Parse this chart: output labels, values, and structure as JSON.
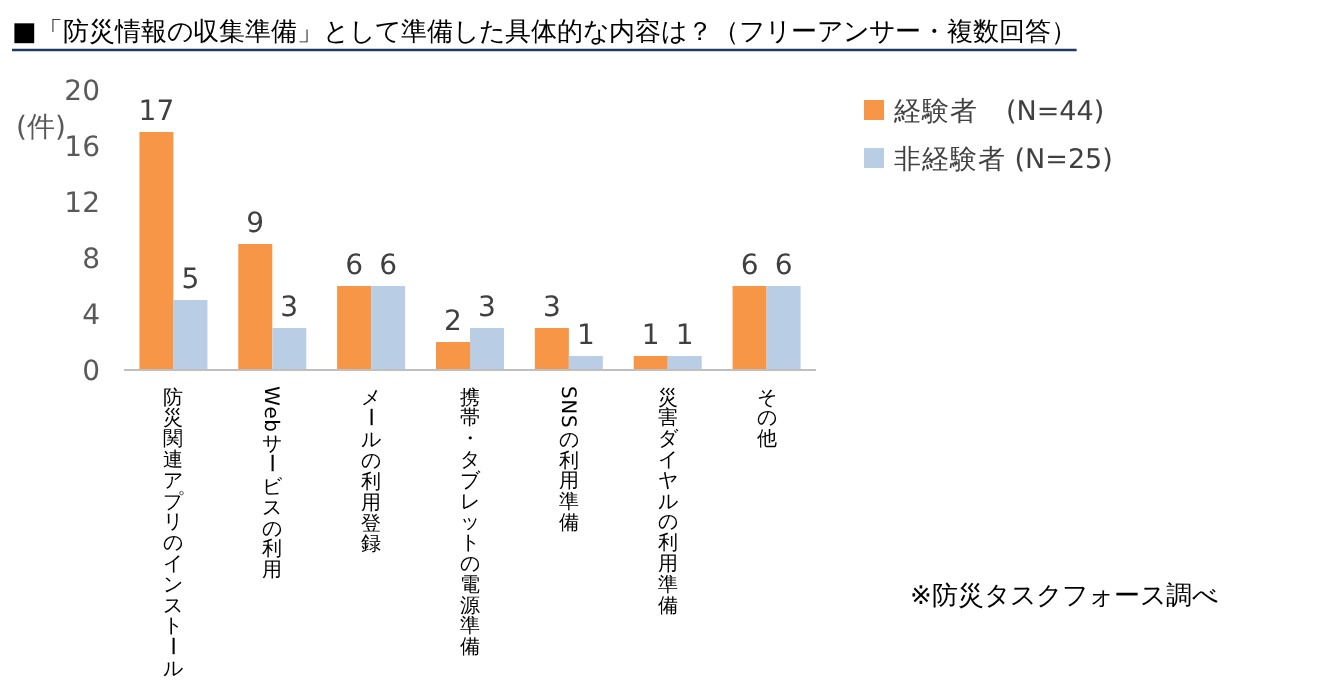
{
  "chart_data": {
    "type": "bar",
    "title": "■「防災情報の収集準備」として準備した具体的な内容は？（フリーアンサー・複数回答）",
    "ylabel": "(件)",
    "categories": [
      "防災関連アプリのインストール",
      "Webサービスの利用",
      "メールの利用登録",
      "携帯・タブレットの電源準備",
      "SNSの利用準備",
      "災害ダイヤルの利用準備",
      "その他"
    ],
    "series": [
      {
        "name": "経験者　(N=44)",
        "color": "#f79646",
        "values": [
          17,
          9,
          6,
          2,
          3,
          1,
          6
        ]
      },
      {
        "name": "非経験者 (N=25)",
        "color": "#b9cde5",
        "values": [
          5,
          3,
          6,
          3,
          1,
          1,
          6
        ]
      }
    ],
    "ylim": [
      0,
      20
    ],
    "yticks": [
      0,
      4,
      8,
      12,
      16,
      20
    ],
    "data_labels": true,
    "legend": "top right",
    "grid": false,
    "annotations": [
      "※防災タスクフォース調べ"
    ]
  }
}
